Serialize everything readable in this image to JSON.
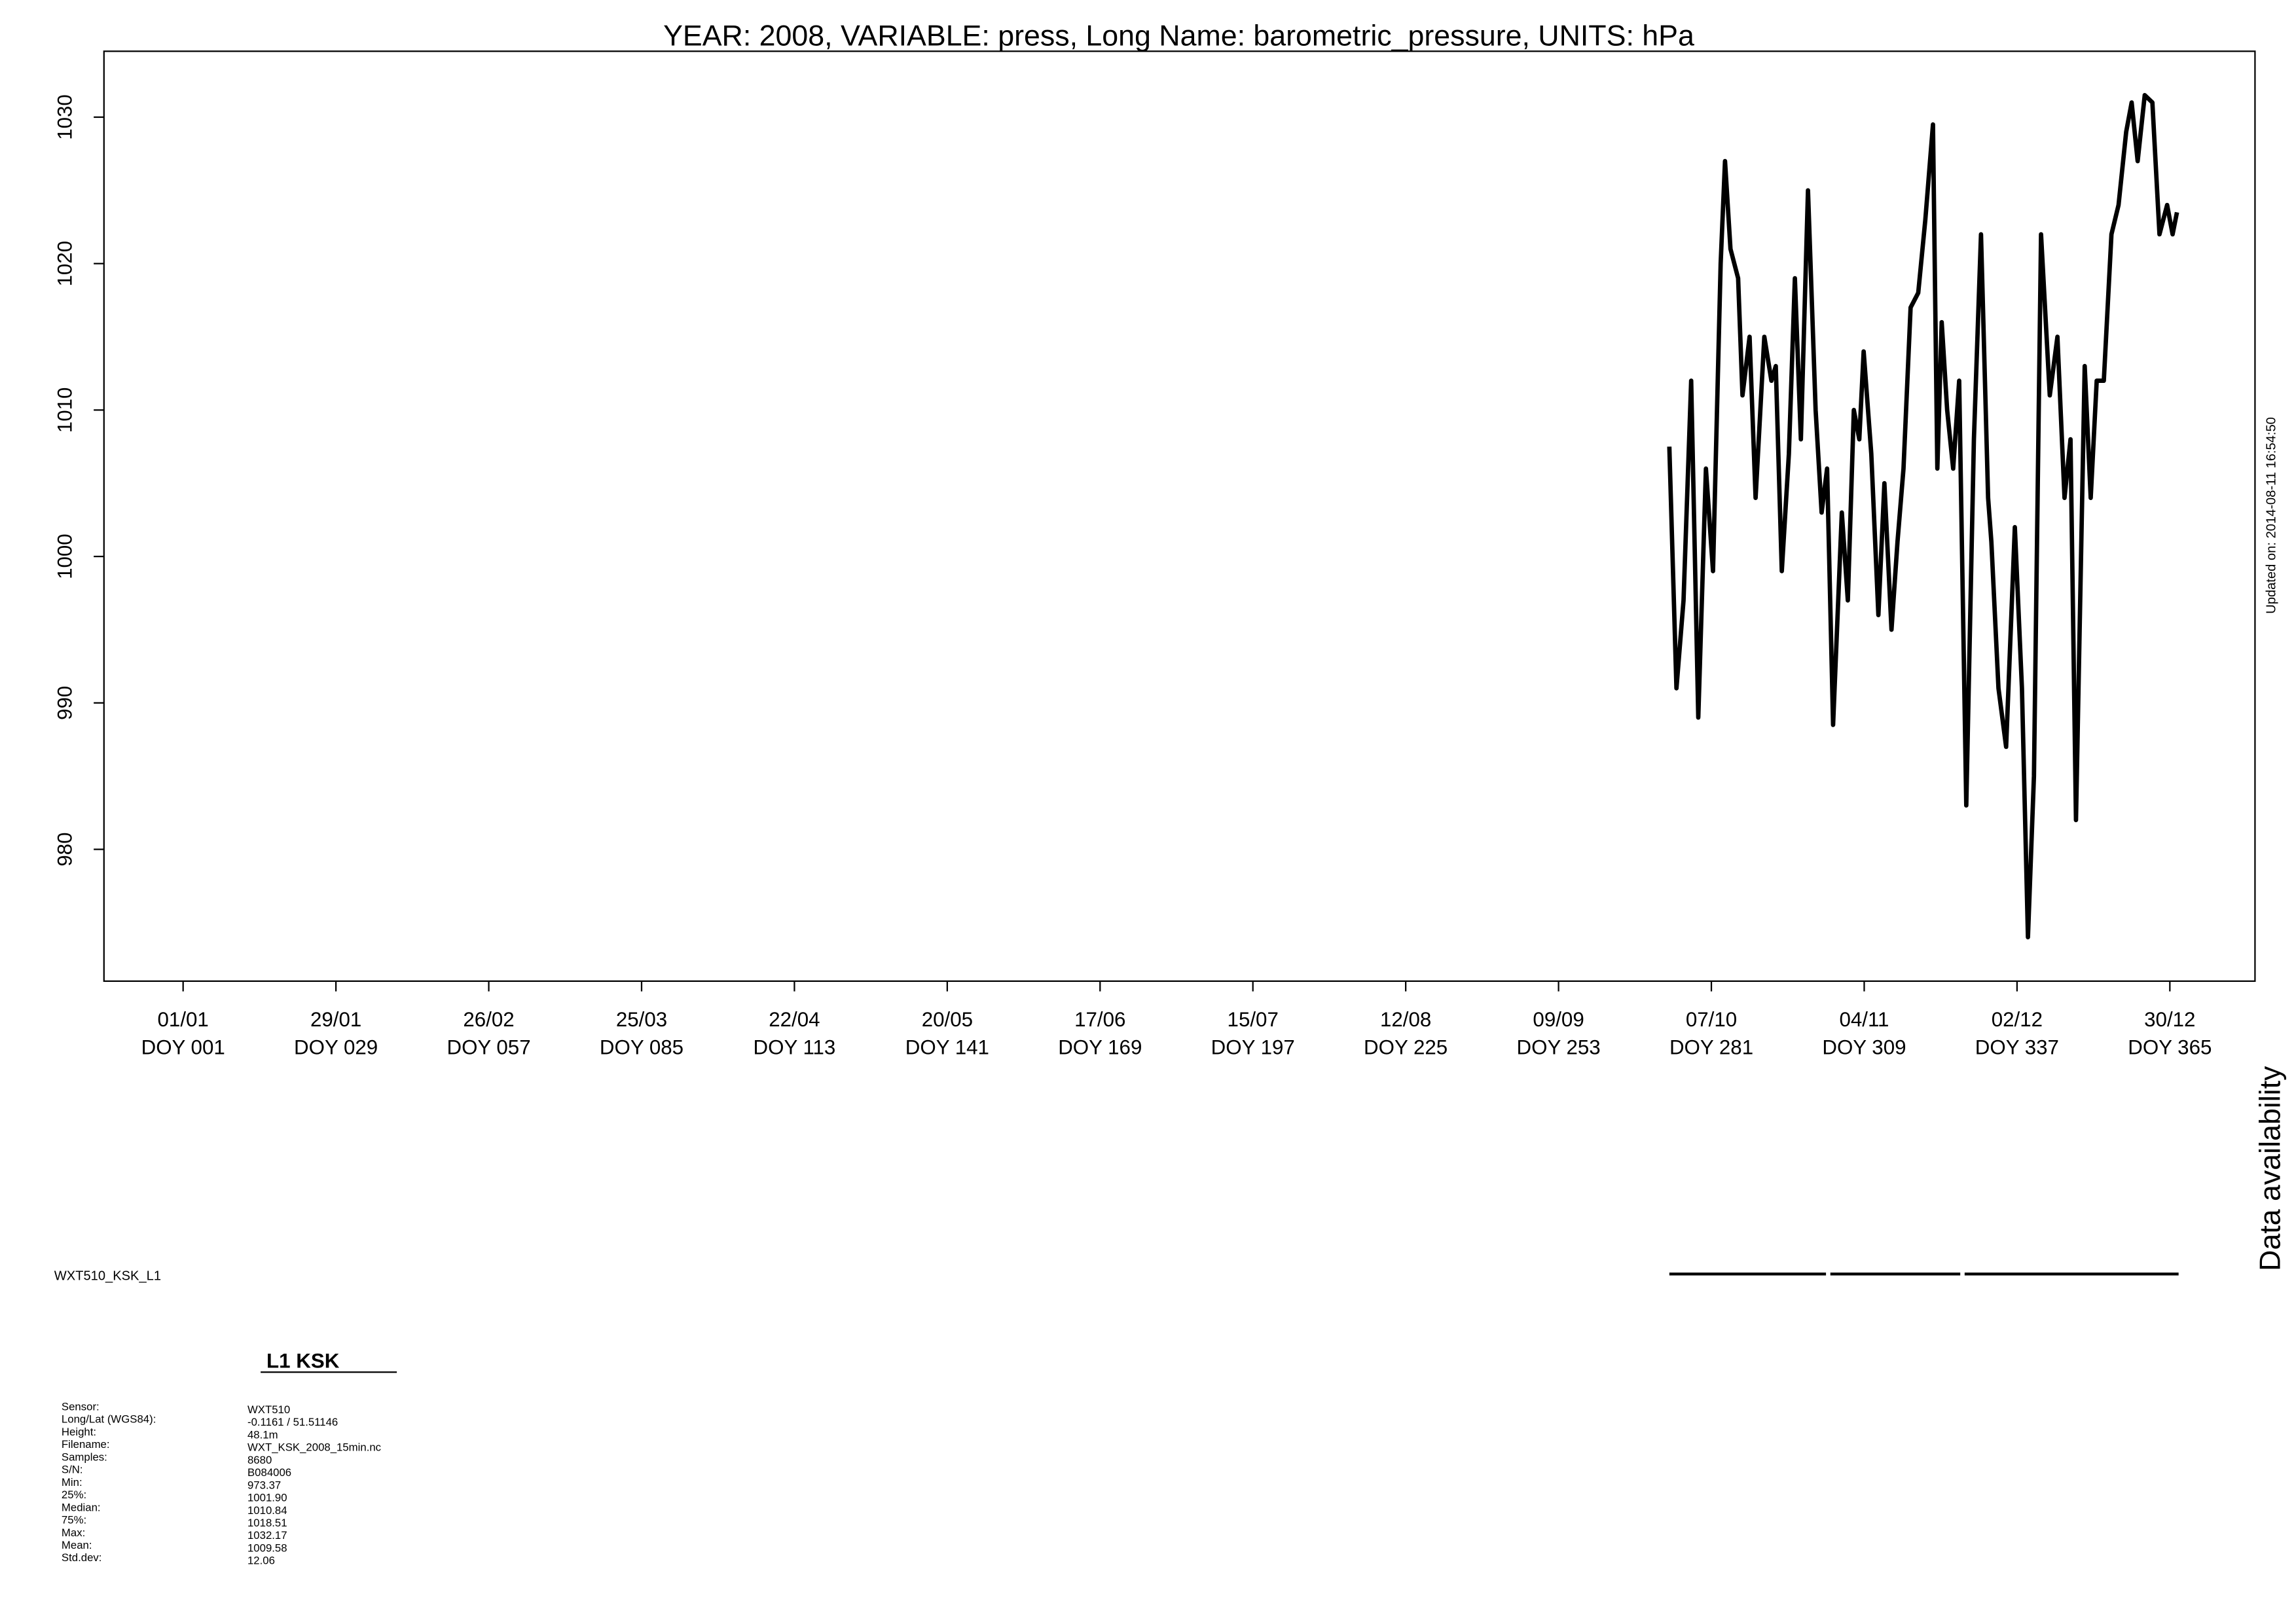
{
  "chart_data": {
    "type": "line",
    "title": "YEAR: 2008, VARIABLE: press, Long Name: barometric_pressure, UNITS: hPa",
    "updated": "Updated on: 2014-08-11 16:54:50",
    "availability_label": "Data availability",
    "station_label": "WXT510_KSK_L1",
    "x": [
      273.3,
      274.6,
      275.9,
      277.3,
      278.6,
      280.0,
      281.3,
      282.7,
      283.5,
      284.5,
      285.9,
      286.7,
      288.0,
      289.1,
      290.7,
      292.0,
      292.8,
      293.9,
      295.2,
      296.3,
      297.4,
      298.7,
      300.1,
      301.2,
      302.2,
      303.3,
      304.9,
      306.0,
      307.1,
      308.1,
      308.9,
      310.3,
      311.6,
      312.7,
      314.0,
      315.1,
      316.2,
      317.5,
      318.9,
      320.2,
      321.6,
      322.4,
      323.2,
      324.2,
      325.3,
      326.4,
      327.7,
      329.1,
      330.4,
      331.7,
      332.3,
      333.6,
      335.0,
      336.6,
      337.9,
      339.0,
      340.1,
      341.4,
      343.0,
      344.4,
      345.7,
      346.8,
      347.8,
      349.4,
      350.5,
      351.6,
      352.9,
      354.3,
      355.6,
      357.0,
      358.0,
      359.1,
      360.4,
      361.8,
      363.1,
      364.5,
      365.5,
      366.3
    ],
    "series": [
      {
        "name": "press",
        "color": "#000000",
        "values": [
          1007.5,
          991,
          997,
          1012,
          989,
          1006,
          999,
          1020,
          1027,
          1021,
          1019,
          1011,
          1015,
          1004,
          1015,
          1012,
          1013,
          999,
          1007,
          1019,
          1008,
          1025,
          1010,
          1003,
          1006,
          988.5,
          1003,
          997,
          1010,
          1008,
          1014,
          1007,
          996,
          1005,
          995,
          1001,
          1006,
          1017,
          1018,
          1023,
          1029.5,
          1006,
          1016,
          1010,
          1006,
          1012,
          983,
          1008,
          1022,
          1004,
          1001,
          991,
          987,
          1002,
          991,
          974,
          985,
          1022,
          1011,
          1015,
          1004,
          1008,
          982,
          1013,
          1004,
          1012,
          1012,
          1022,
          1024,
          1029,
          1031,
          1027,
          1031.5,
          1031,
          1022,
          1024,
          1022,
          1023.5
        ]
      }
    ],
    "availability": [
      [
        273.3,
        302.0
      ],
      [
        302.8,
        326.6
      ],
      [
        327.4,
        366.6
      ]
    ],
    "xlim": [
      -13.5,
      380.6
    ],
    "ylim": [
      971,
      1034.5
    ],
    "yticks": [
      980,
      990,
      1000,
      1010,
      1020,
      1030
    ],
    "xticks": [
      {
        "value": 1,
        "label": "01/01"
      },
      {
        "value": 29,
        "label": "29/01"
      },
      {
        "value": 57,
        "label": "26/02"
      },
      {
        "value": 85,
        "label": "25/03"
      },
      {
        "value": 113,
        "label": "22/04"
      },
      {
        "value": 141,
        "label": "20/05"
      },
      {
        "value": 169,
        "label": "17/06"
      },
      {
        "value": 197,
        "label": "15/07"
      },
      {
        "value": 225,
        "label": "12/08"
      },
      {
        "value": 253,
        "label": "09/09"
      },
      {
        "value": 281,
        "label": "07/10"
      },
      {
        "value": 309,
        "label": "04/11"
      },
      {
        "value": 337,
        "label": "02/12"
      },
      {
        "value": 365,
        "label": "30/12"
      }
    ],
    "xtick_doy_labels": [
      "DOY 001",
      "DOY 029",
      "DOY 057",
      "DOY 085",
      "DOY 113",
      "DOY 141",
      "DOY 169",
      "DOY 197",
      "DOY 225",
      "DOY 253",
      "DOY 281",
      "DOY 309",
      "DOY 337",
      "DOY 365"
    ]
  },
  "info": {
    "title": "L1 KSK",
    "rows": [
      [
        "Sensor:",
        "WXT510"
      ],
      [
        "Long/Lat (WGS84):",
        "-0.1161 / 51.51146"
      ],
      [
        "Height:",
        "48.1m"
      ],
      [
        "Filename:",
        "WXT_KSK_2008_15min.nc"
      ],
      [
        "Samples:",
        "8680"
      ],
      [
        "S/N:",
        "B084006"
      ],
      [
        "Min:",
        "973.37"
      ],
      [
        "25%:",
        "1001.90"
      ],
      [
        "Median:",
        "1010.84"
      ],
      [
        "75%:",
        "1018.51"
      ],
      [
        "Max:",
        "1032.17"
      ],
      [
        "Mean:",
        "1009.58"
      ],
      [
        "Std.dev:",
        "12.06"
      ]
    ]
  }
}
